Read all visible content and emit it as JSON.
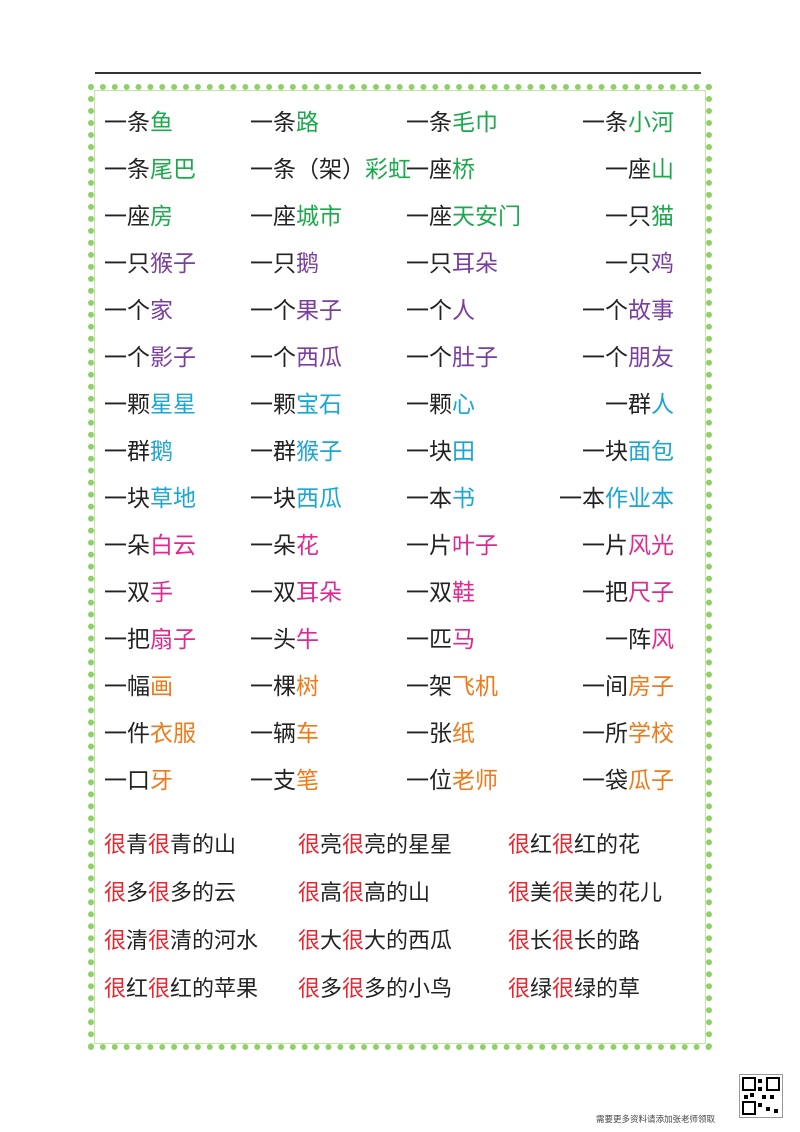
{
  "colors": {
    "green": "#1ba94c",
    "purple": "#7a3ea0",
    "cyan": "#1aa6d4",
    "magenta": "#e0288f",
    "orange": "#ef7a1a",
    "red": "#e8262b",
    "border": "#8fd166"
  },
  "measure_rows": [
    [
      {
        "p": "一条",
        "w": "鱼",
        "c": "green"
      },
      {
        "p": "一条",
        "w": "路",
        "c": "green"
      },
      {
        "p": "一条",
        "w": "毛巾",
        "c": "green"
      },
      {
        "p": "一条",
        "w": "小河",
        "c": "green"
      }
    ],
    [
      {
        "p": "一条",
        "w": "尾巴",
        "c": "green"
      },
      {
        "p": "一条（架）",
        "w": "彩虹",
        "c": "green"
      },
      {
        "p": "一座",
        "w": "桥",
        "c": "green"
      },
      {
        "p": "一座",
        "w": "山",
        "c": "green"
      }
    ],
    [
      {
        "p": "一座",
        "w": "房",
        "c": "green"
      },
      {
        "p": "一座",
        "w": "城市",
        "c": "green"
      },
      {
        "p": "一座",
        "w": "天安门",
        "c": "green"
      },
      {
        "p": "一只",
        "w": "猫",
        "c": "green"
      }
    ],
    [
      {
        "p": "一只",
        "w": "猴子",
        "c": "purple"
      },
      {
        "p": "一只",
        "w": "鹅",
        "c": "purple"
      },
      {
        "p": "一只",
        "w": "耳朵",
        "c": "purple"
      },
      {
        "p": "一只",
        "w": "鸡",
        "c": "purple"
      }
    ],
    [
      {
        "p": "一个",
        "w": "家",
        "c": "purple"
      },
      {
        "p": "一个",
        "w": "果子",
        "c": "purple"
      },
      {
        "p": "一个",
        "w": "人",
        "c": "purple"
      },
      {
        "p": "一个",
        "w": "故事",
        "c": "purple"
      }
    ],
    [
      {
        "p": "一个",
        "w": "影子",
        "c": "purple"
      },
      {
        "p": "一个",
        "w": "西瓜",
        "c": "purple"
      },
      {
        "p": "一个",
        "w": "肚子",
        "c": "purple"
      },
      {
        "p": "一个",
        "w": "朋友",
        "c": "purple"
      }
    ],
    [
      {
        "p": "一颗",
        "w": "星星",
        "c": "cyan"
      },
      {
        "p": "一颗",
        "w": "宝石",
        "c": "cyan"
      },
      {
        "p": "一颗",
        "w": "心",
        "c": "cyan"
      },
      {
        "p": "一群",
        "w": "人",
        "c": "cyan"
      }
    ],
    [
      {
        "p": "一群",
        "w": "鹅",
        "c": "cyan"
      },
      {
        "p": "一群",
        "w": "猴子",
        "c": "cyan"
      },
      {
        "p": "一块",
        "w": "田",
        "c": "cyan"
      },
      {
        "p": "一块",
        "w": "面包",
        "c": "cyan"
      }
    ],
    [
      {
        "p": "一块",
        "w": "草地",
        "c": "cyan"
      },
      {
        "p": "一块",
        "w": "西瓜",
        "c": "cyan"
      },
      {
        "p": "一本",
        "w": "书",
        "c": "cyan"
      },
      {
        "p": "一本",
        "w": "作业本",
        "c": "cyan"
      }
    ],
    [
      {
        "p": "一朵",
        "w": "白云",
        "c": "magenta"
      },
      {
        "p": "一朵",
        "w": "花",
        "c": "magenta"
      },
      {
        "p": "一片",
        "w": "叶子",
        "c": "magenta"
      },
      {
        "p": "一片",
        "w": "风光",
        "c": "magenta"
      }
    ],
    [
      {
        "p": "一双",
        "w": "手",
        "c": "magenta"
      },
      {
        "p": "一双",
        "w": "耳朵",
        "c": "magenta"
      },
      {
        "p": "一双",
        "w": "鞋",
        "c": "magenta"
      },
      {
        "p": "一把",
        "w": "尺子",
        "c": "magenta"
      }
    ],
    [
      {
        "p": "一把",
        "w": "扇子",
        "c": "magenta"
      },
      {
        "p": "一头",
        "w": "牛",
        "c": "magenta"
      },
      {
        "p": "一匹",
        "w": "马",
        "c": "magenta"
      },
      {
        "p": "一阵",
        "w": "风",
        "c": "magenta"
      }
    ],
    [
      {
        "p": "一幅",
        "w": "画",
        "c": "orange"
      },
      {
        "p": "一棵",
        "w": "树",
        "c": "orange"
      },
      {
        "p": "一架",
        "w": "飞机",
        "c": "orange"
      },
      {
        "p": "一间",
        "w": "房子",
        "c": "orange"
      }
    ],
    [
      {
        "p": "一件",
        "w": "衣服",
        "c": "orange"
      },
      {
        "p": "一辆",
        "w": "车",
        "c": "orange"
      },
      {
        "p": "一张",
        "w": "纸",
        "c": "orange"
      },
      {
        "p": "一所",
        "w": "学校",
        "c": "orange"
      }
    ],
    [
      {
        "p": "一口",
        "w": "牙",
        "c": "orange"
      },
      {
        "p": "一支",
        "w": "笔",
        "c": "orange"
      },
      {
        "p": "一位",
        "w": "老师",
        "c": "orange"
      },
      {
        "p": "一袋",
        "w": "瓜子",
        "c": "orange"
      }
    ]
  ],
  "hen_rows": [
    [
      [
        "很",
        "青",
        "很",
        "青的山"
      ],
      [
        "很",
        "亮",
        "很",
        "亮的星星"
      ],
      [
        "很",
        "红",
        "很",
        "红的花"
      ]
    ],
    [
      [
        "很",
        "多",
        "很",
        "多的云"
      ],
      [
        "很",
        "高",
        "很",
        "高的山"
      ],
      [
        "很",
        "美",
        "很",
        "美的花儿"
      ]
    ],
    [
      [
        "很",
        "清",
        "很",
        "清的河水"
      ],
      [
        "很",
        "大",
        "很",
        "大的西瓜"
      ],
      [
        "很",
        "长",
        "很",
        "长的路"
      ]
    ],
    [
      [
        "很",
        "红",
        "很",
        "红的苹果"
      ],
      [
        "很",
        "多",
        "很",
        "多的小鸟"
      ],
      [
        "很",
        "绿",
        "很",
        "绿的草"
      ]
    ]
  ],
  "footer": {
    "note": "需要更多资料请添加张老师领取",
    "qr_icon": "qr-code-icon"
  }
}
